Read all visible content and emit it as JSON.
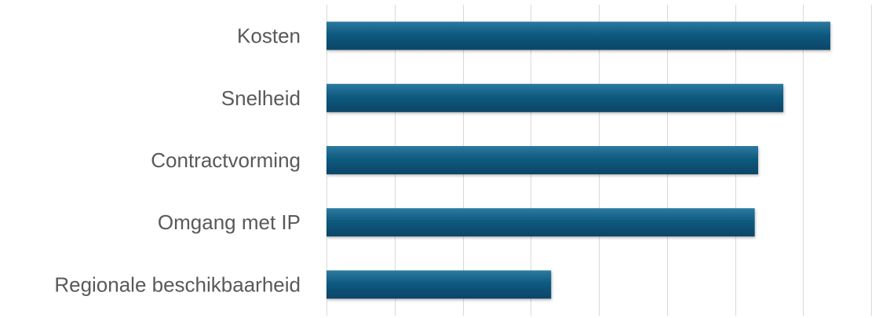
{
  "chart_data": {
    "type": "bar",
    "orientation": "horizontal",
    "categories": [
      "Kosten",
      "Snelheid",
      "Contractvorming",
      "Omgang met IP",
      "Regionale beschikbaarheid"
    ],
    "values": [
      74,
      67.1,
      63.4,
      62.9,
      33
    ],
    "xlim": [
      0,
      80
    ],
    "grid": true,
    "bar_color": "#0f5a80",
    "title": "",
    "xlabel": "",
    "ylabel": ""
  }
}
